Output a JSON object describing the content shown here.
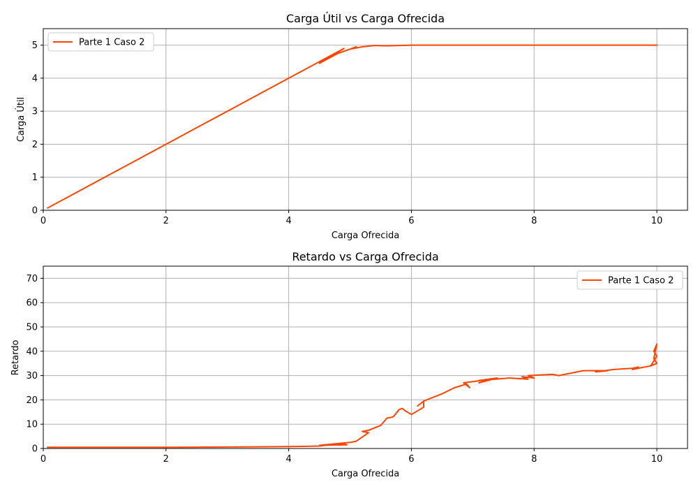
{
  "chart_data": [
    {
      "type": "line",
      "title": "Carga Útil vs Carga Ofrecida",
      "xlabel": "Carga Ofrecida",
      "ylabel": "Carga Útil",
      "xlim": [
        0,
        10.5
      ],
      "ylim": [
        0,
        5.5
      ],
      "xticks": [
        0,
        2,
        4,
        6,
        8,
        10
      ],
      "yticks": [
        0,
        1,
        2,
        3,
        4,
        5
      ],
      "grid": true,
      "legend": "top-left",
      "series": [
        {
          "name": "Parte 1 Caso 2",
          "color": "#ff4500",
          "x": [
            0.07,
            0.5,
            1.0,
            1.5,
            2.0,
            2.5,
            3.0,
            3.5,
            4.0,
            4.3,
            4.5,
            4.7,
            4.9,
            4.5,
            4.8,
            5.0,
            5.1,
            5.0,
            5.2,
            5.4,
            5.6,
            5.8,
            6.0,
            6.5,
            7.0,
            7.5,
            8.0,
            8.5,
            9.0,
            9.5,
            10.0
          ],
          "y": [
            0.07,
            0.5,
            1.0,
            1.5,
            2.0,
            2.5,
            3.0,
            3.5,
            4.0,
            4.3,
            4.5,
            4.7,
            4.9,
            4.45,
            4.75,
            4.88,
            4.95,
            4.88,
            4.95,
            4.99,
            4.98,
            4.99,
            5.0,
            5.0,
            5.0,
            5.0,
            5.0,
            5.0,
            5.0,
            5.0,
            5.0
          ]
        }
      ]
    },
    {
      "type": "line",
      "title": "Retardo vs Carga Ofrecida",
      "xlabel": "Carga Ofrecida",
      "ylabel": "Retardo",
      "xlim": [
        0,
        10.5
      ],
      "ylim": [
        0,
        75
      ],
      "xticks": [
        0,
        2,
        4,
        6,
        8,
        10
      ],
      "yticks": [
        0,
        10,
        20,
        30,
        40,
        50,
        60,
        70
      ],
      "grid": true,
      "legend": "top-right",
      "series": [
        {
          "name": "Parte 1 Caso 2",
          "color": "#ff4500",
          "x": [
            0.07,
            1.0,
            2.0,
            3.0,
            3.5,
            4.0,
            4.3,
            4.5,
            4.7,
            4.9,
            4.95,
            4.5,
            5.0,
            5.1,
            5.3,
            5.2,
            5.3,
            5.5,
            5.6,
            5.7,
            5.8,
            5.85,
            5.9,
            6.0,
            6.2,
            6.2,
            6.1,
            6.2,
            6.5,
            6.7,
            6.9,
            6.95,
            6.85,
            7.0,
            7.3,
            7.1,
            7.4,
            7.1,
            7.6,
            7.9,
            7.8,
            8.0,
            7.9,
            8.3,
            8.4,
            8.6,
            8.7,
            8.6,
            8.8,
            9.2,
            9.0,
            9.3,
            9.6,
            9.7,
            9.6,
            9.9,
            9.95,
            10.0,
            9.95,
            10.0,
            9.95,
            10.0,
            9.9
          ],
          "y": [
            0.5,
            0.5,
            0.5,
            0.6,
            0.7,
            0.8,
            0.9,
            1.0,
            1.5,
            2.0,
            1.5,
            1.3,
            2.5,
            3.0,
            6.5,
            7.0,
            7.5,
            9.5,
            12.5,
            13.0,
            16.0,
            16.5,
            15.5,
            14.0,
            17.0,
            19.5,
            17.5,
            19.5,
            22.5,
            25.0,
            26.5,
            25.0,
            27.0,
            27.5,
            28.5,
            27.0,
            29.0,
            28.0,
            29.0,
            28.5,
            29.5,
            29.0,
            30.0,
            30.5,
            30.0,
            31.0,
            31.5,
            31.0,
            32.0,
            32.0,
            31.5,
            32.5,
            33.0,
            33.5,
            32.5,
            34.0,
            36.0,
            38.0,
            40.0,
            43.0,
            37.0,
            35.0,
            34.0
          ]
        }
      ]
    }
  ]
}
